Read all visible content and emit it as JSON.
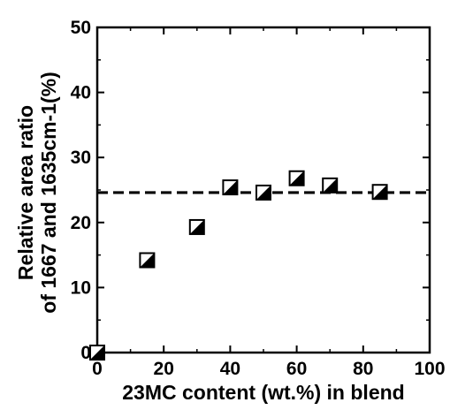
{
  "chart_data": {
    "type": "scatter",
    "xlabel": "23MC content (wt.%) in blend",
    "ylabel_lines": [
      "Relative area ratio",
      "of 1667 and 1635cm-1(%)"
    ],
    "xlim": [
      0,
      100
    ],
    "ylim": [
      0,
      50
    ],
    "x_ticks": [
      0,
      20,
      40,
      60,
      80,
      100
    ],
    "y_ticks": [
      0,
      10,
      20,
      30,
      40,
      50
    ],
    "grid": false,
    "series": [
      {
        "marker": "half-filled-square",
        "x": [
          0,
          15,
          30,
          40,
          50,
          60,
          70,
          85
        ],
        "y": [
          0,
          14.2,
          19.3,
          25.4,
          24.6,
          26.8,
          25.7,
          24.7
        ]
      }
    ],
    "reference_line": {
      "y": 24.6,
      "style": "dashed"
    }
  }
}
